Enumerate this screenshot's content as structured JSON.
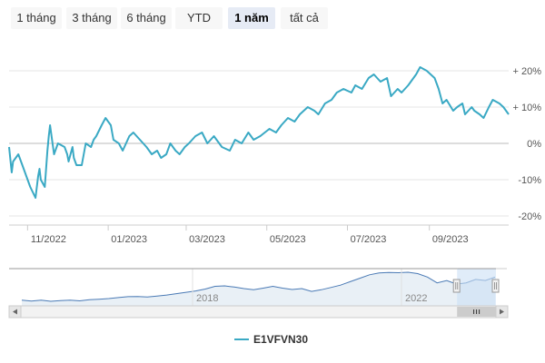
{
  "range_selector": {
    "buttons": [
      "1 tháng",
      "3 tháng",
      "6 tháng",
      "YTD",
      "1 năm",
      "tất cả"
    ],
    "selected": "1 năm"
  },
  "colors": {
    "series": "#3aa9c4",
    "grid": "#e6e6e6",
    "axis_text": "#555555",
    "navigator_mask": "#cce0f5"
  },
  "chart_data": {
    "type": "line",
    "title": "",
    "xlabel": "",
    "ylabel": "",
    "x_ticks": [
      "11/2022",
      "01/2023",
      "03/2023",
      "05/2023",
      "07/2023",
      "09/2023"
    ],
    "y_ticks": [
      "+ 20%",
      "+ 10%",
      "0%",
      "-10%",
      "-20%"
    ],
    "ylim": [
      -20,
      20
    ],
    "xlim": [
      "2022-10-18",
      "2023-10-31"
    ],
    "legend": "bottom-center",
    "grid": true,
    "series": [
      {
        "name": "E1VFVN30",
        "x": [
          "2022-10-18",
          "2022-10-20",
          "2022-10-21",
          "2022-10-25",
          "2022-10-28",
          "2022-11-01",
          "2022-11-03",
          "2022-11-07",
          "2022-11-09",
          "2022-11-10",
          "2022-11-11",
          "2022-11-14",
          "2022-11-16",
          "2022-11-17",
          "2022-11-18",
          "2022-11-21",
          "2022-11-24",
          "2022-11-29",
          "2022-12-01",
          "2022-12-02",
          "2022-12-05",
          "2022-12-06",
          "2022-12-08",
          "2022-12-12",
          "2022-12-15",
          "2022-12-19",
          "2022-12-21",
          "2022-12-23",
          "2022-12-27",
          "2022-12-30",
          "2023-01-03",
          "2023-01-05",
          "2023-01-09",
          "2023-01-12",
          "2023-01-17",
          "2023-01-20",
          "2023-01-30",
          "2023-02-03",
          "2023-02-07",
          "2023-02-10",
          "2023-02-14",
          "2023-02-17",
          "2023-02-21",
          "2023-02-24",
          "2023-02-28",
          "2023-03-03",
          "2023-03-08",
          "2023-03-13",
          "2023-03-17",
          "2023-03-22",
          "2023-03-28",
          "2023-04-03",
          "2023-04-07",
          "2023-04-12",
          "2023-04-17",
          "2023-04-21",
          "2023-04-26",
          "2023-05-03",
          "2023-05-08",
          "2023-05-12",
          "2023-05-17",
          "2023-05-22",
          "2023-05-26",
          "2023-06-01",
          "2023-06-06",
          "2023-06-09",
          "2023-06-14",
          "2023-06-19",
          "2023-06-23",
          "2023-06-28",
          "2023-07-04",
          "2023-07-07",
          "2023-07-12",
          "2023-07-17",
          "2023-07-21",
          "2023-07-26",
          "2023-07-31",
          "2023-08-03",
          "2023-08-08",
          "2023-08-11",
          "2023-08-16",
          "2023-08-18",
          "2023-08-22",
          "2023-08-25",
          "2023-08-30",
          "2023-09-05",
          "2023-09-08",
          "2023-09-11",
          "2023-09-14",
          "2023-09-19",
          "2023-09-22",
          "2023-09-26",
          "2023-09-28",
          "2023-10-03",
          "2023-10-05",
          "2023-10-09",
          "2023-10-12",
          "2023-10-16",
          "2023-10-19",
          "2023-10-24",
          "2023-10-27",
          "2023-10-31"
        ],
        "y": [
          -1.0,
          -8.0,
          -5.0,
          -3.0,
          -6.0,
          -10.0,
          -12.0,
          -15.0,
          -9.0,
          -7.0,
          -10.0,
          -12.0,
          -2.0,
          2.0,
          5.0,
          -3.0,
          0.0,
          -1.0,
          -3.0,
          -5.0,
          -1.0,
          -4.0,
          -6.0,
          -6.0,
          0.0,
          -1.0,
          1.0,
          2.0,
          5.0,
          7.0,
          5.0,
          1.0,
          0.0,
          -2.0,
          2.0,
          3.0,
          -1.0,
          -3.0,
          -2.0,
          -4.0,
          -3.0,
          0.0,
          -2.0,
          -3.0,
          -1.0,
          0.0,
          2.0,
          3.0,
          0.0,
          2.0,
          -1.0,
          -2.0,
          1.0,
          0.0,
          3.0,
          1.0,
          2.0,
          4.0,
          3.0,
          5.0,
          7.0,
          6.0,
          8.0,
          10.0,
          9.0,
          8.0,
          11.0,
          12.0,
          14.0,
          15.0,
          14.0,
          16.0,
          15.0,
          18.0,
          19.0,
          17.0,
          18.0,
          13.0,
          15.0,
          14.0,
          16.0,
          17.0,
          19.0,
          21.0,
          20.0,
          18.0,
          15.0,
          11.0,
          12.0,
          9.0,
          10.0,
          11.0,
          8.0,
          10.0,
          9.0,
          8.0,
          7.0,
          10.0,
          12.0,
          11.0,
          10.0,
          8.0
        ]
      }
    ]
  },
  "navigator": {
    "labels": [
      "2018",
      "2022"
    ],
    "overview_values": [
      1.0,
      0.96,
      1.0,
      0.95,
      0.98,
      1.0,
      0.97,
      1.02,
      1.04,
      1.07,
      1.11,
      1.15,
      1.16,
      1.14,
      1.18,
      1.22,
      1.28,
      1.34,
      1.4,
      1.48,
      1.6,
      1.62,
      1.57,
      1.5,
      1.45,
      1.52,
      1.6,
      1.52,
      1.46,
      1.5,
      1.38,
      1.45,
      1.55,
      1.65,
      1.8,
      1.95,
      2.1,
      2.18,
      2.2,
      2.19,
      2.21,
      2.15,
      2.0,
      1.75,
      1.85,
      1.7,
      1.75,
      1.9,
      1.85,
      2.0
    ],
    "window_start": 0.9
  }
}
